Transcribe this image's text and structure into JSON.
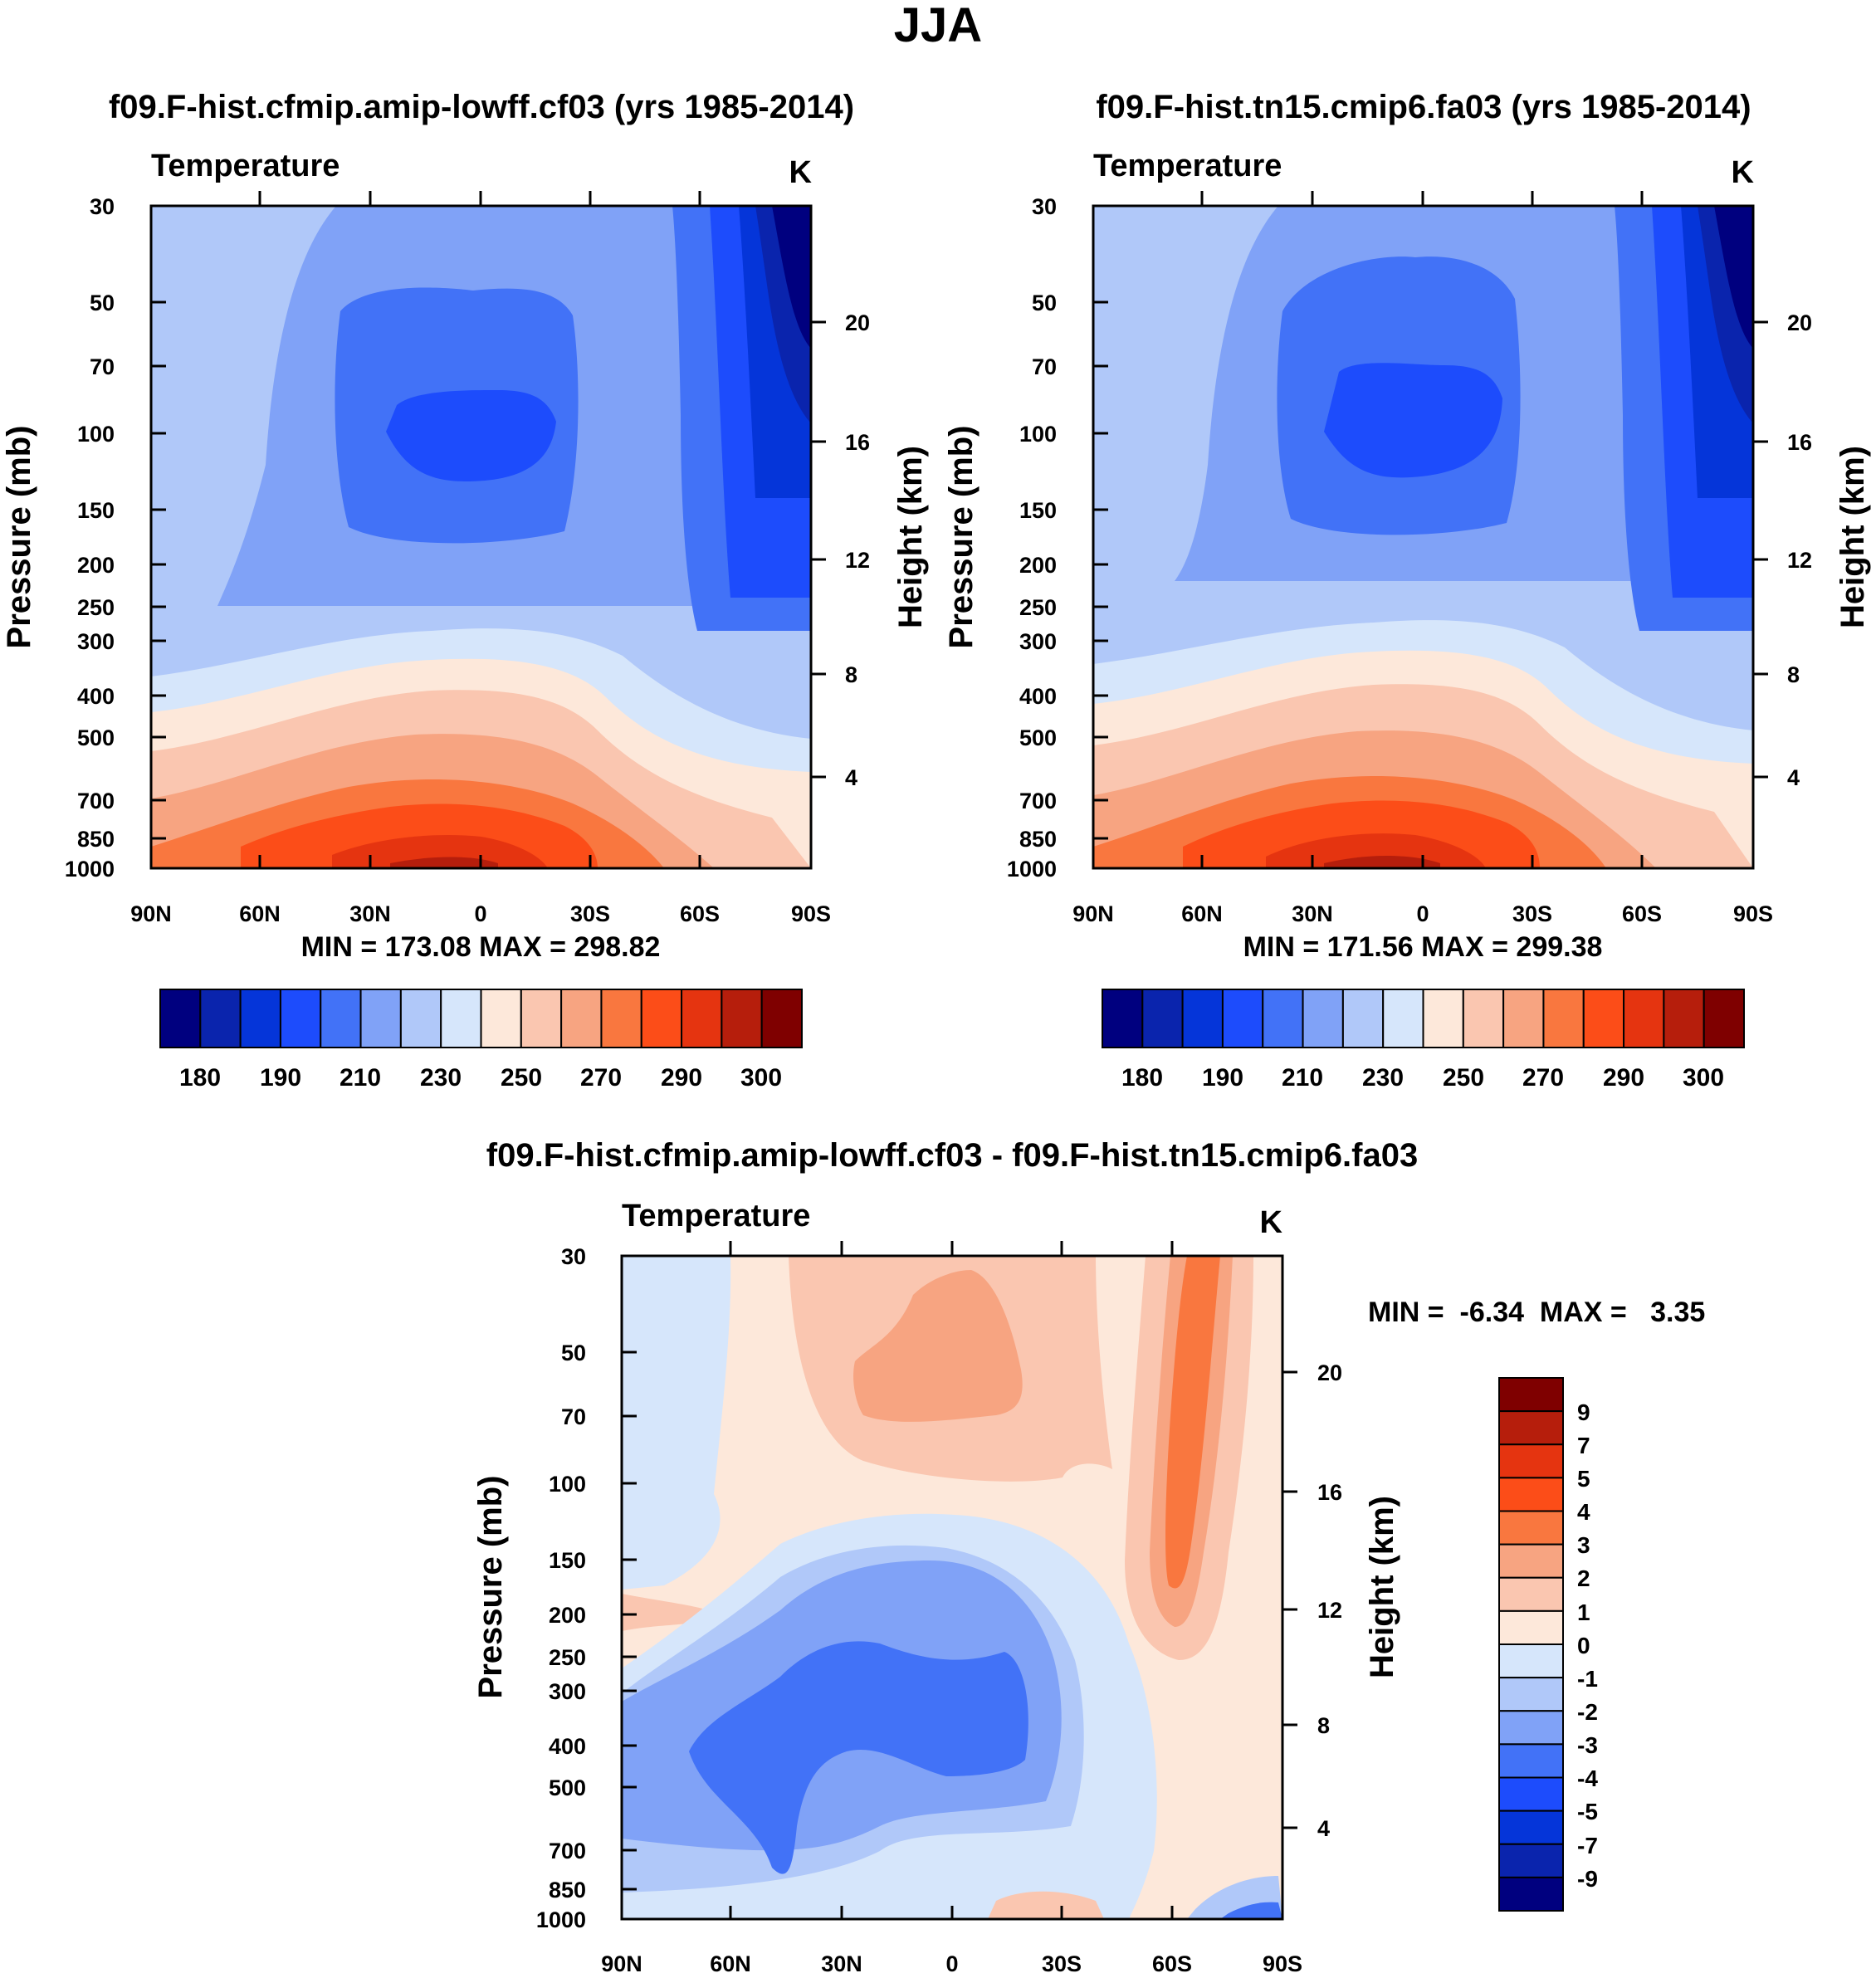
{
  "figure_title": "JJA",
  "colors": {
    "temperature_palette": [
      "#00007f",
      "#0a24ad",
      "#0535d9",
      "#1d4cfc",
      "#4272f7",
      "#80a2f7",
      "#b0c8f9",
      "#d6e6fb",
      "#fde8da",
      "#fac6b0",
      "#f7a481",
      "#f9773f",
      "#fc4d18",
      "#e53410",
      "#b61e0c",
      "#7f0000"
    ],
    "difference_palette": [
      "#00007f",
      "#0a24ad",
      "#0535d9",
      "#1d4cfc",
      "#4272f7",
      "#80a2f7",
      "#b0c8f9",
      "#d6e6fb",
      "#fde8da",
      "#fac6b0",
      "#f7a481",
      "#f9773f",
      "#fc4d18",
      "#e53410",
      "#b61e0c",
      "#7f0000"
    ]
  },
  "chart_data": [
    {
      "type": "contour",
      "title": "f09.F-hist.cfmip.amip-lowff.cf03 (yrs 1985-2014)",
      "left_label": "Temperature",
      "units": "K",
      "ylabel": "Pressure (mb)",
      "ylabel_right": "Height (km)",
      "x_ticks": [
        "90N",
        "60N",
        "30N",
        "0",
        "30S",
        "60S",
        "90S"
      ],
      "y_ticks": [
        "30",
        "50",
        "70",
        "100",
        "150",
        "200",
        "250",
        "300",
        "400",
        "500",
        "700",
        "850",
        "1000"
      ],
      "y_right_ticks": [
        "4",
        "8",
        "12",
        "16",
        "20"
      ],
      "stats": "MIN = 173.08  MAX = 298.82",
      "colorbar_labels": [
        "180",
        "190",
        "210",
        "230",
        "250",
        "270",
        "290",
        "300"
      ]
    },
    {
      "type": "contour",
      "title": "f09.F-hist.tn15.cmip6.fa03 (yrs 1985-2014)",
      "left_label": "Temperature",
      "units": "K",
      "ylabel": "Pressure (mb)",
      "ylabel_right": "Height (km)",
      "x_ticks": [
        "90N",
        "60N",
        "30N",
        "0",
        "30S",
        "60S",
        "90S"
      ],
      "y_ticks": [
        "30",
        "50",
        "70",
        "100",
        "150",
        "200",
        "250",
        "300",
        "400",
        "500",
        "700",
        "850",
        "1000"
      ],
      "y_right_ticks": [
        "4",
        "8",
        "12",
        "16",
        "20"
      ],
      "stats": "MIN = 171.56  MAX = 299.38",
      "colorbar_labels": [
        "180",
        "190",
        "210",
        "230",
        "250",
        "270",
        "290",
        "300"
      ]
    },
    {
      "type": "contour",
      "title": "f09.F-hist.cfmip.amip-lowff.cf03 - f09.F-hist.tn15.cmip6.fa03",
      "left_label": "Temperature",
      "units": "K",
      "ylabel": "Pressure (mb)",
      "ylabel_right": "Height (km)",
      "x_ticks": [
        "90N",
        "60N",
        "30N",
        "0",
        "30S",
        "60S",
        "90S"
      ],
      "y_ticks": [
        "30",
        "50",
        "70",
        "100",
        "150",
        "200",
        "250",
        "300",
        "400",
        "500",
        "700",
        "850",
        "1000"
      ],
      "y_right_ticks": [
        "4",
        "8",
        "12",
        "16",
        "20"
      ],
      "stats": "MIN =  -6.34  MAX =   3.35",
      "colorbar_labels": [
        "9",
        "7",
        "5",
        "4",
        "3",
        "2",
        "1",
        "0",
        "-1",
        "-2",
        "-3",
        "-4",
        "-5",
        "-7",
        "-9"
      ]
    }
  ]
}
